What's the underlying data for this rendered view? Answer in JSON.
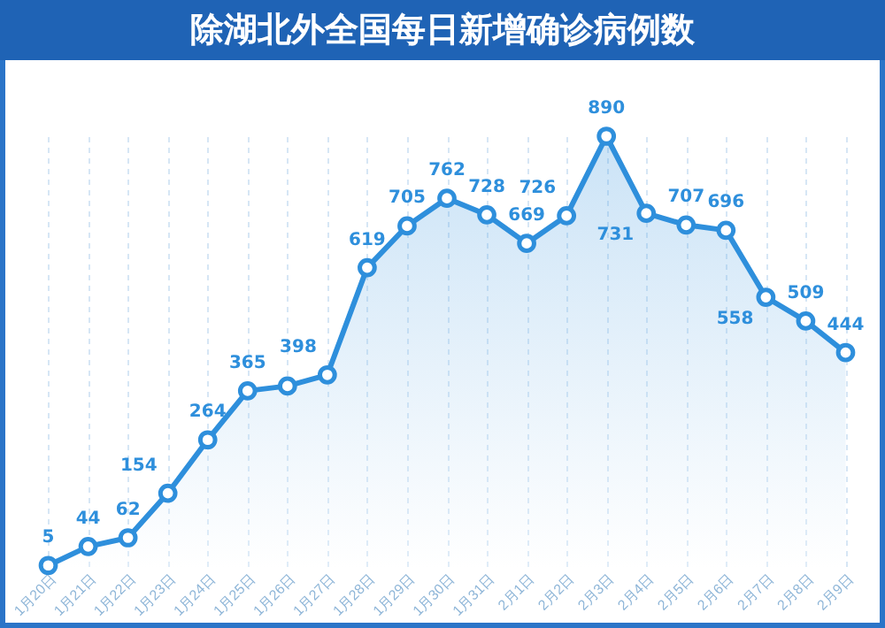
{
  "chart_data": {
    "type": "area",
    "title": "除湖北外全国每日新增确诊病例数",
    "categories": [
      "1月20日",
      "1月21日",
      "1月22日",
      "1月23日",
      "1月24日",
      "1月25日",
      "1月26日",
      "1月27日",
      "1月28日",
      "1月29日",
      "1月30日",
      "1月31日",
      "2月1日",
      "2月2日",
      "2月3日",
      "2月4日",
      "2月5日",
      "2月6日",
      "2月7日",
      "2月8日",
      "2月9日"
    ],
    "series": [
      {
        "color": "#2e8fdc",
        "values": [
          5,
          44,
          62,
          154,
          264,
          365,
          375,
          398,
          619,
          705,
          762,
          728,
          669,
          726,
          890,
          731,
          707,
          696,
          558,
          509,
          444
        ],
        "value_labels": [
          "5",
          "44",
          "62",
          "154",
          "264",
          "365",
          null,
          "398",
          "619",
          "705",
          "762",
          "728",
          "669",
          "726",
          "890",
          "731",
          "707",
          "696",
          "558",
          "509",
          "444"
        ]
      }
    ],
    "marker": "circle",
    "grid": "x"
  }
}
